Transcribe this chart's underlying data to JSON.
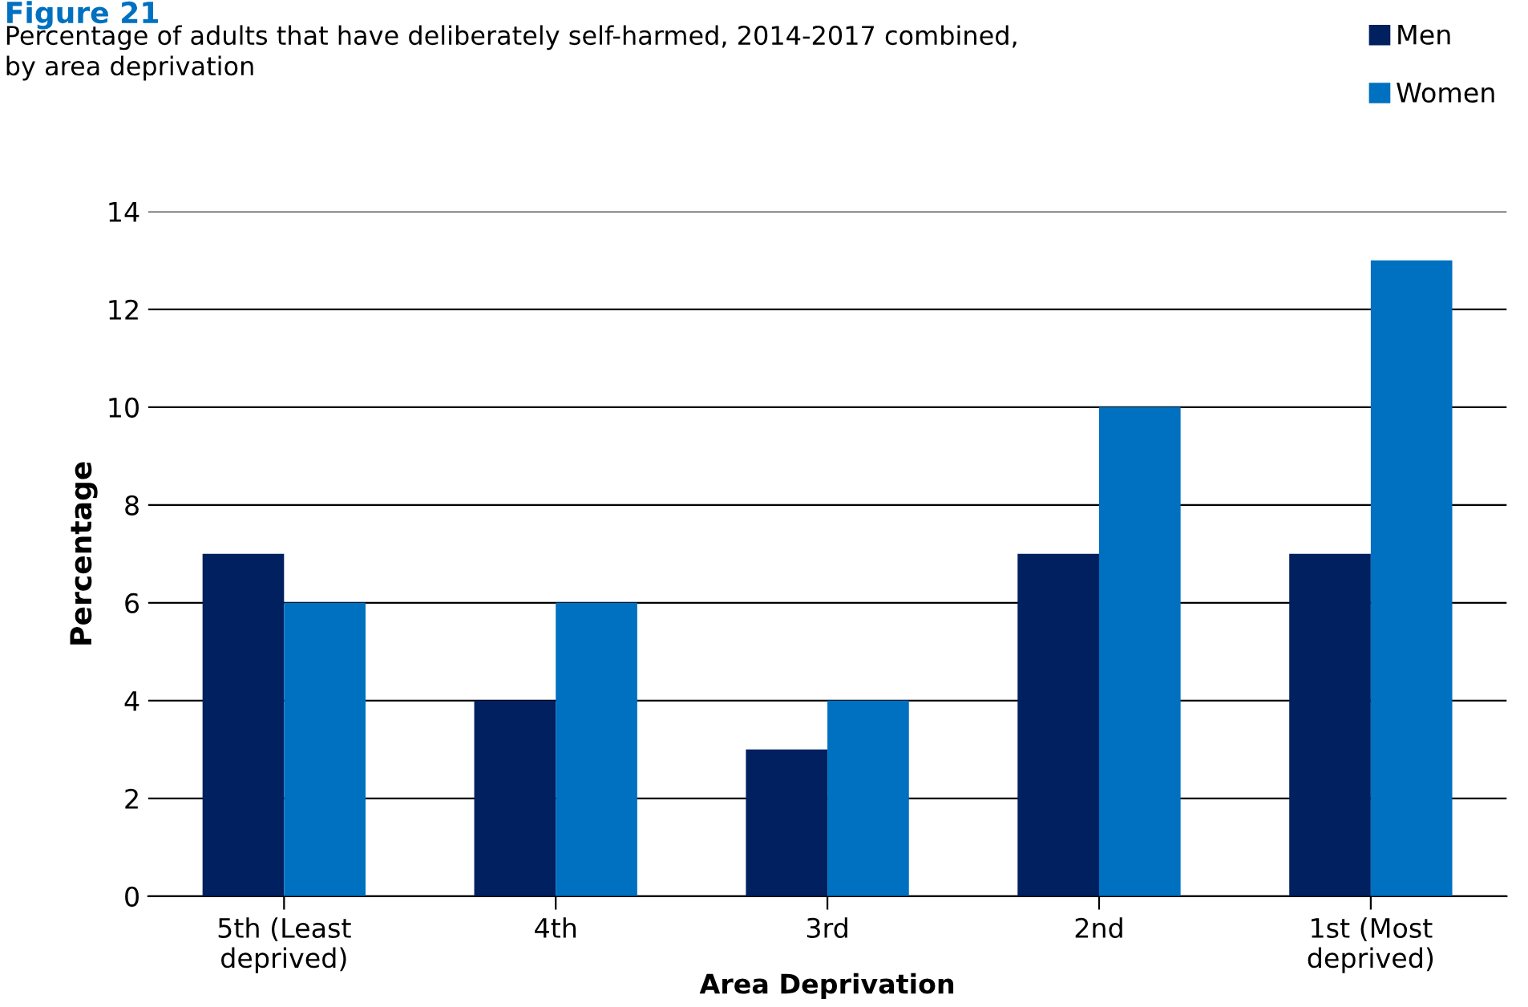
{
  "chart_data": {
    "type": "bar",
    "title": "Figure 21",
    "subtitle": "Percentage of adults that have deliberately self-harmed, 2014-2017 combined,\nby area deprivation",
    "xlabel": "Area Deprivation",
    "ylabel": "Percentage",
    "categories": [
      "5th (Least\ndeprived)",
      "4th",
      "3rd",
      "2nd",
      "1st (Most\ndeprived)"
    ],
    "series": [
      {
        "name": "Men",
        "color": "#002060",
        "values": [
          7,
          4,
          3,
          7,
          7
        ]
      },
      {
        "name": "Women",
        "color": "#0070c0",
        "values": [
          6,
          6,
          4,
          10,
          13
        ]
      }
    ],
    "ylim": [
      0,
      14
    ],
    "yticks": [
      0,
      2,
      4,
      6,
      8,
      10,
      12,
      14
    ],
    "grid": "y",
    "legend": "top right"
  }
}
